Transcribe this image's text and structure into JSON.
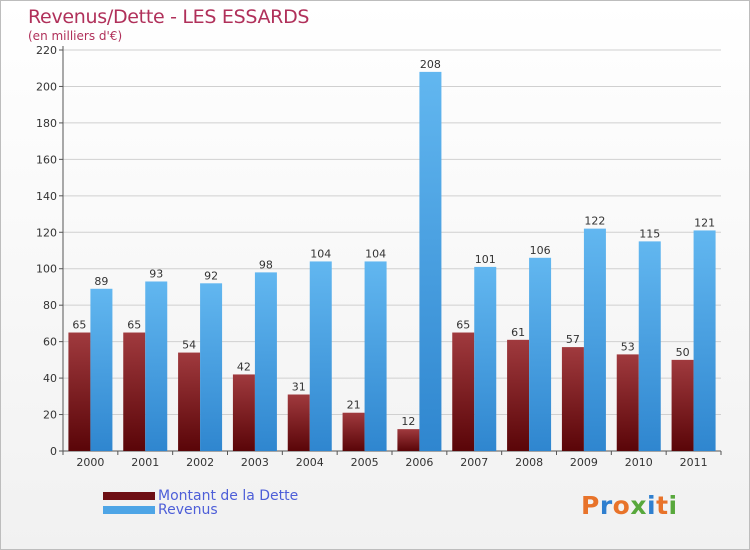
{
  "title": "Revenus/Dette - LES ESSARDS",
  "subtitle": "(en milliers d'€)",
  "logo_text": "Proxiti",
  "colors": {
    "dette": "#6e0f14",
    "revenus": "#4ea5e6",
    "axis_text": "#333333",
    "grid": "#d0d0d0",
    "title": "#b0305a",
    "legend_text": "#4d5ed8"
  },
  "legend": [
    {
      "label": "Montant de la Dette",
      "color": "#6e0f14"
    },
    {
      "label": "Revenus",
      "color": "#4ea5e6"
    }
  ],
  "chart_data": {
    "type": "bar",
    "title": "Revenus/Dette - LES ESSARDS",
    "subtitle": "(en milliers d'€)",
    "categories": [
      "2000",
      "2001",
      "2002",
      "2003",
      "2004",
      "2005",
      "2006",
      "2007",
      "2008",
      "2009",
      "2010",
      "2011"
    ],
    "series": [
      {
        "name": "Montant de la Dette",
        "values": [
          65,
          65,
          54,
          42,
          31,
          21,
          12,
          65,
          61,
          57,
          53,
          50
        ]
      },
      {
        "name": "Revenus",
        "values": [
          89,
          93,
          92,
          98,
          104,
          104,
          208,
          101,
          106,
          122,
          115,
          121
        ]
      }
    ],
    "ylim": [
      0,
      220
    ],
    "yticks": [
      0,
      20,
      40,
      60,
      80,
      100,
      120,
      140,
      160,
      180,
      200,
      220
    ],
    "grid": true,
    "legend_position": "bottom-left"
  }
}
